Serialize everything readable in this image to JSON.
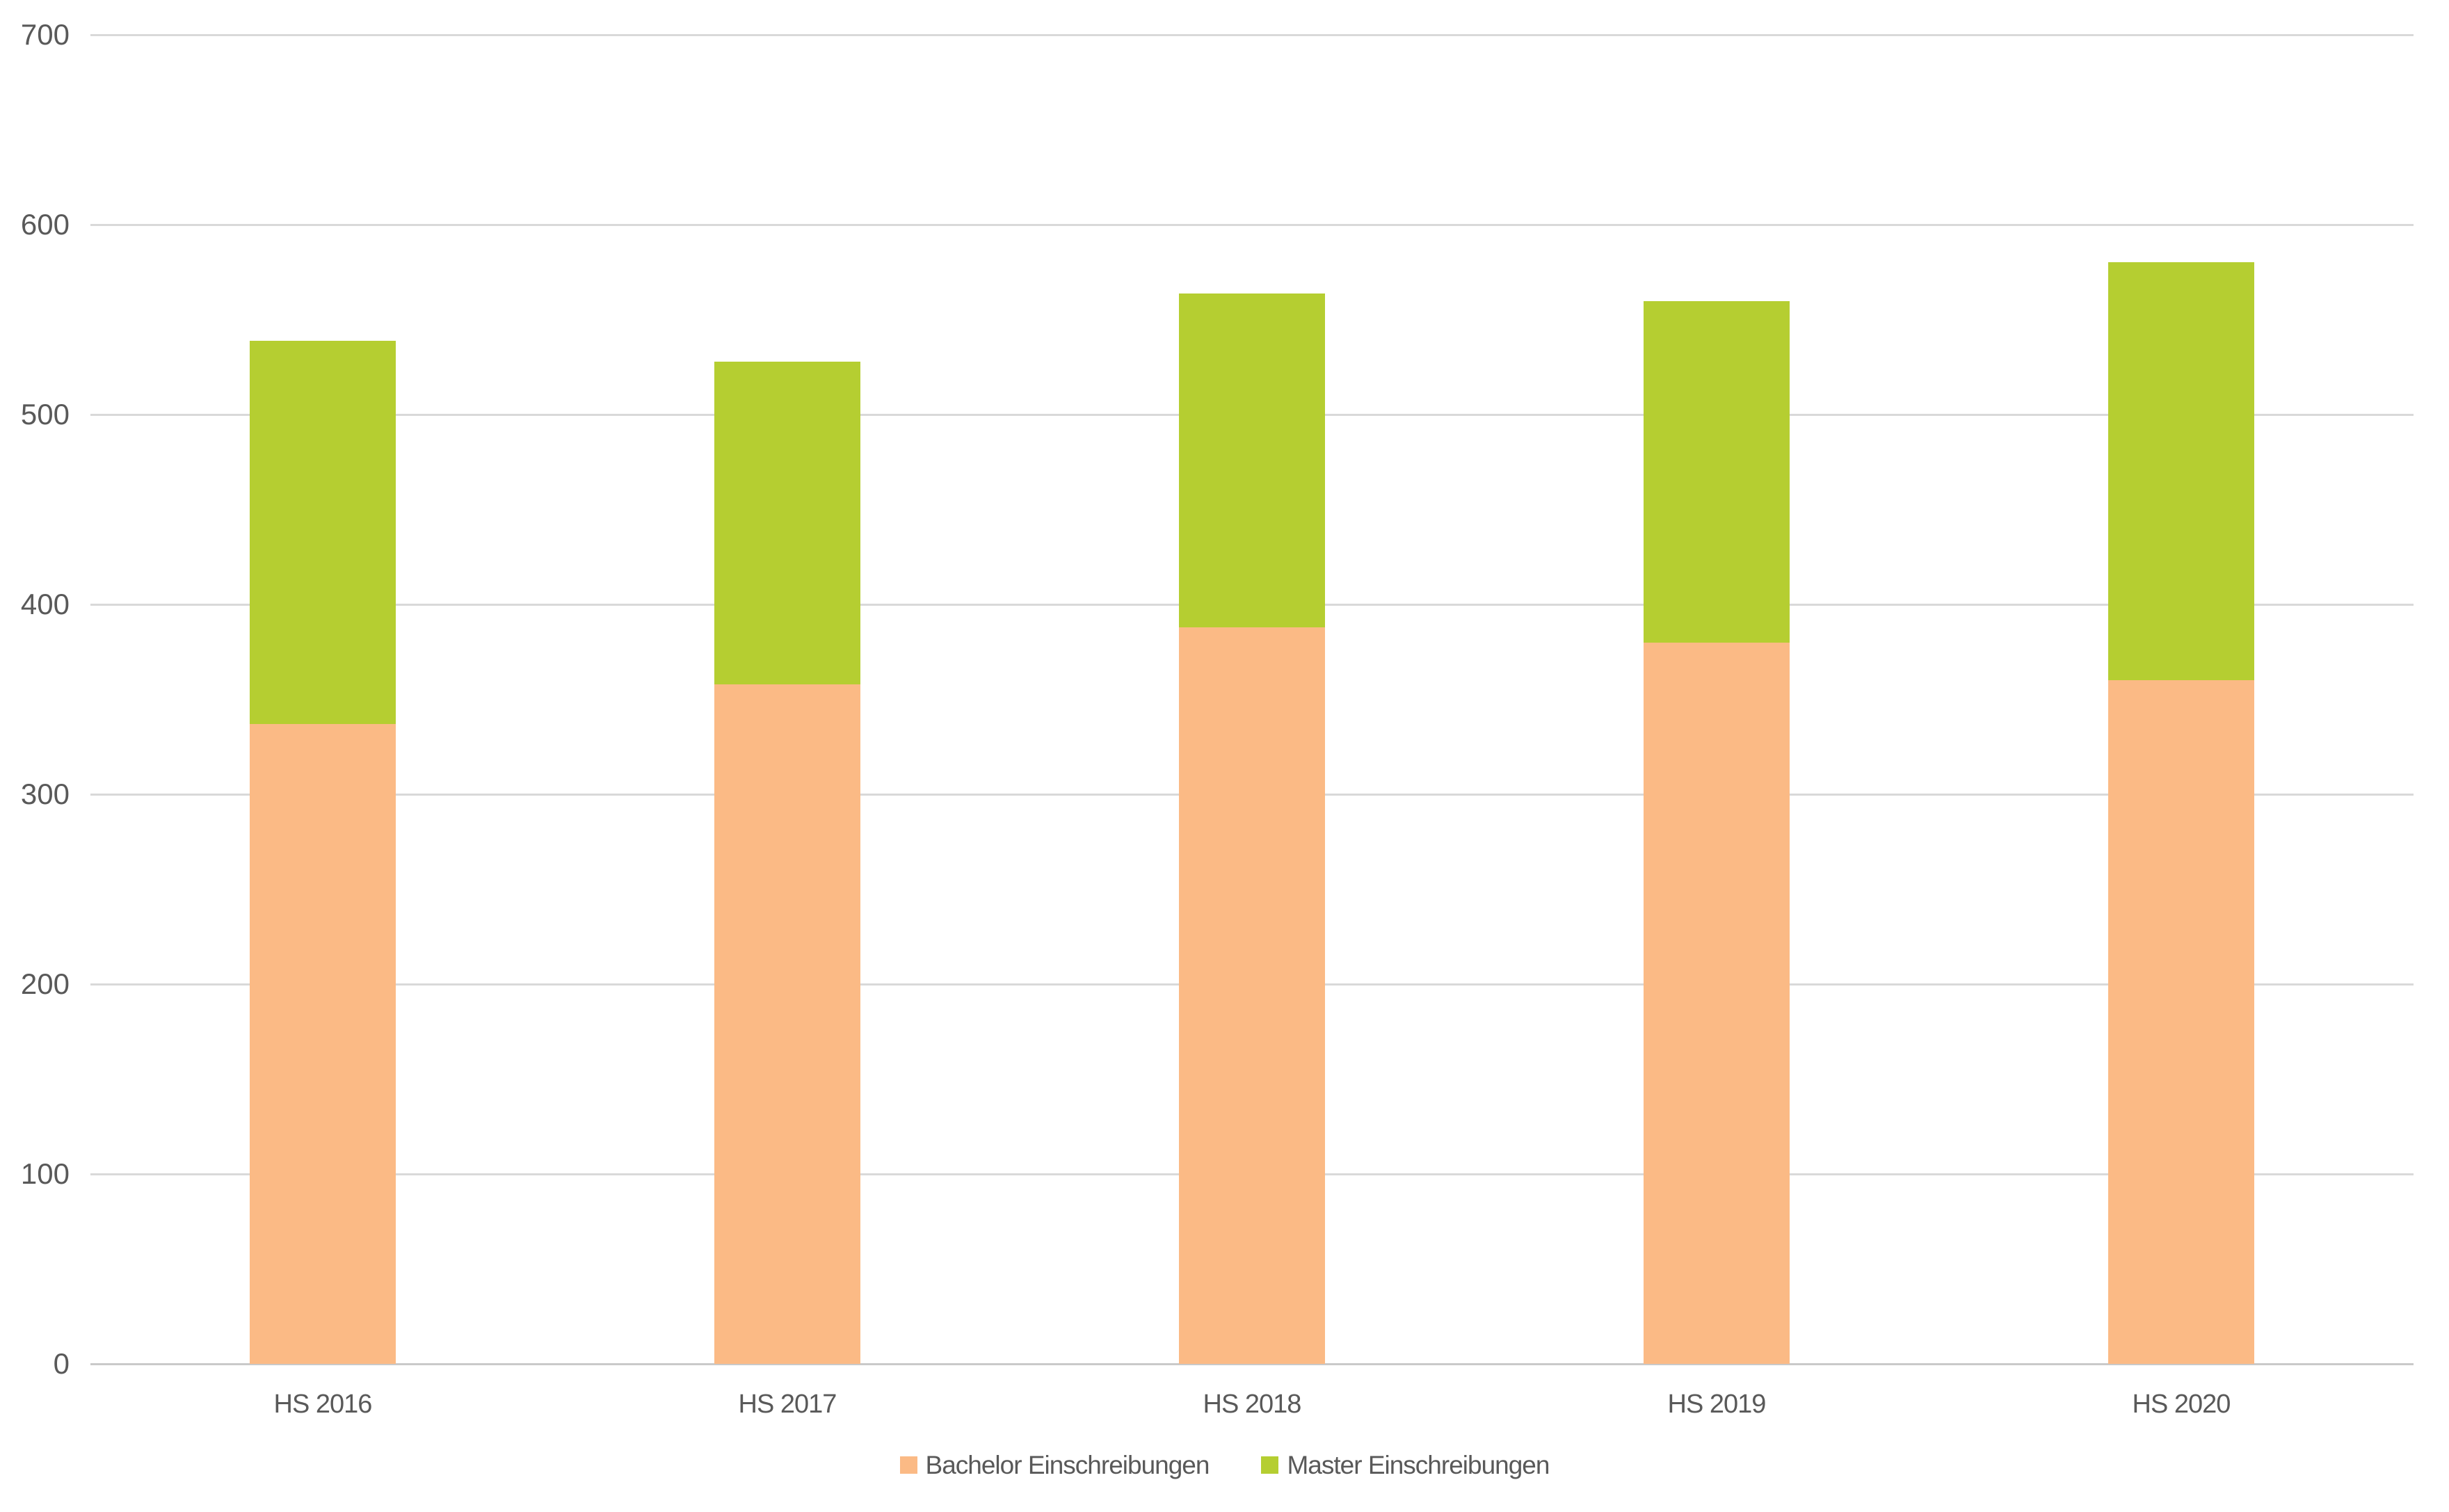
{
  "chart_data": {
    "type": "bar",
    "stacked": true,
    "title": "",
    "xlabel": "",
    "ylabel": "",
    "categories": [
      "HS 2016",
      "HS 2017",
      "HS 2018",
      "HS 2019",
      "HS 2020"
    ],
    "series": [
      {
        "name": "Bachelor Einschreibungen",
        "color": "#FBBA85",
        "values": [
          337,
          358,
          388,
          380,
          360
        ]
      },
      {
        "name": "Master Einschreibungen",
        "color": "#B5CE31",
        "values": [
          202,
          170,
          176,
          180,
          220
        ]
      }
    ],
    "totals": [
      539,
      528,
      564,
      560,
      580
    ],
    "ylim": [
      0,
      700
    ],
    "ytick_interval": 100,
    "ytick_labels": [
      "0",
      "100",
      "200",
      "300",
      "400",
      "500",
      "600",
      "700"
    ],
    "grid": true,
    "legend_position": "bottom",
    "colors": {
      "gridline": "#D9D9D9",
      "axis_line": "#C9C9C9",
      "text": "#595959",
      "background": "#FFFFFF"
    }
  }
}
